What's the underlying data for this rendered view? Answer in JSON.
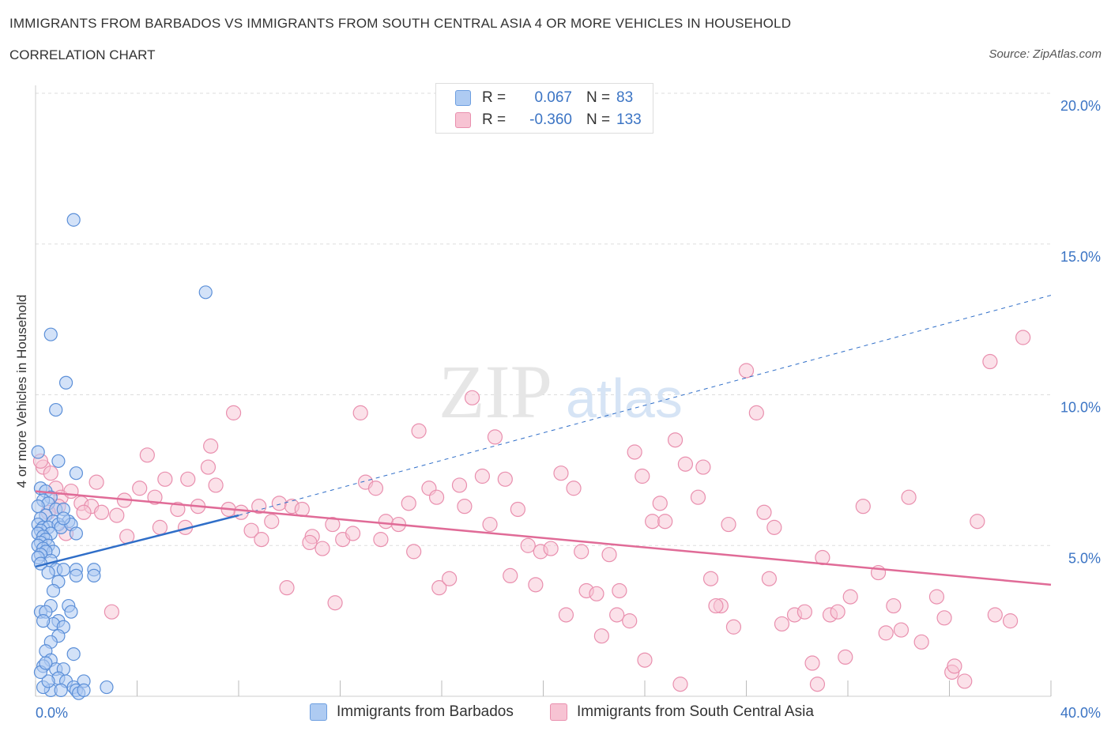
{
  "title": "IMMIGRANTS FROM BARBADOS VS IMMIGRANTS FROM SOUTH CENTRAL ASIA 4 OR MORE VEHICLES IN HOUSEHOLD",
  "subtitle": "CORRELATION CHART",
  "source": "Source: ZipAtlas.com",
  "watermark": {
    "part1": "ZIP",
    "part2": "atlas"
  },
  "legend": {
    "rows": [
      {
        "r_label": "R =",
        "r_value": "0.067",
        "n_label": "N =",
        "n_value": "83",
        "fill": "#aecbf2",
        "stroke": "#6e9fe0"
      },
      {
        "r_label": "R =",
        "r_value": "-0.360",
        "n_label": "N =",
        "n_value": "133",
        "fill": "#f7c3d3",
        "stroke": "#e98fae"
      }
    ]
  },
  "bottom_legend": [
    "Immigrants from Barbados",
    "Immigrants from South Central Asia"
  ],
  "colors": {
    "blue_fill": "#aecbf2",
    "blue_stroke": "#5b8fd8",
    "blue_line": "#2f6ec8",
    "pink_fill": "#f7c3d3",
    "pink_stroke": "#e98fae",
    "pink_line": "#e06b97",
    "tick_text": "#3b74c4",
    "grid": "#dddddd"
  },
  "chart_data": {
    "type": "scatter",
    "title": "IMMIGRANTS FROM BARBADOS VS IMMIGRANTS FROM SOUTH CENTRAL ASIA 4 OR MORE VEHICLES IN HOUSEHOLD",
    "subtitle": "CORRELATION CHART",
    "xlabel": "",
    "ylabel": "4 or more Vehicles in Household",
    "xlim": [
      0,
      40
    ],
    "ylim": [
      0,
      20
    ],
    "x_tick_labels": [
      "0.0%",
      "40.0%"
    ],
    "y_ticks": [
      5,
      10,
      15,
      20
    ],
    "y_tick_labels": [
      "5.0%",
      "10.0%",
      "15.0%",
      "20.0%"
    ],
    "grid": true,
    "legend_position": "top-center",
    "series": [
      {
        "name": "Immigrants from Barbados",
        "R": 0.067,
        "N": 83,
        "trend": {
          "x": [
            0,
            8
          ],
          "y": [
            4.3,
            6.0
          ],
          "extended_dashed_to": [
            40,
            13.3
          ]
        },
        "points": [
          [
            1.5,
            15.8
          ],
          [
            6.7,
            13.4
          ],
          [
            0.6,
            12.0
          ],
          [
            1.2,
            10.4
          ],
          [
            0.8,
            9.5
          ],
          [
            0.1,
            8.1
          ],
          [
            0.9,
            7.8
          ],
          [
            1.6,
            7.4
          ],
          [
            0.2,
            6.9
          ],
          [
            0.4,
            6.8
          ],
          [
            0.6,
            6.6
          ],
          [
            0.3,
            6.5
          ],
          [
            0.5,
            6.4
          ],
          [
            0.1,
            6.3
          ],
          [
            0.8,
            6.2
          ],
          [
            1.1,
            6.2
          ],
          [
            0.4,
            6.0
          ],
          [
            0.2,
            5.9
          ],
          [
            0.7,
            5.8
          ],
          [
            1.3,
            5.8
          ],
          [
            0.1,
            5.7
          ],
          [
            0.3,
            5.6
          ],
          [
            0.5,
            5.6
          ],
          [
            0.9,
            5.7
          ],
          [
            1.0,
            5.6
          ],
          [
            1.4,
            5.7
          ],
          [
            0.2,
            5.5
          ],
          [
            0.6,
            5.4
          ],
          [
            0.1,
            5.4
          ],
          [
            0.3,
            5.3
          ],
          [
            1.6,
            5.4
          ],
          [
            0.4,
            5.2
          ],
          [
            0.2,
            5.1
          ],
          [
            0.1,
            5.0
          ],
          [
            0.5,
            5.0
          ],
          [
            0.3,
            4.9
          ],
          [
            0.7,
            4.8
          ],
          [
            0.4,
            4.8
          ],
          [
            0.2,
            4.7
          ],
          [
            0.1,
            4.6
          ],
          [
            0.6,
            4.5
          ],
          [
            0.2,
            4.4
          ],
          [
            0.8,
            4.2
          ],
          [
            1.1,
            4.2
          ],
          [
            1.6,
            4.2
          ],
          [
            2.3,
            4.2
          ],
          [
            0.5,
            4.1
          ],
          [
            1.6,
            4.0
          ],
          [
            2.3,
            4.0
          ],
          [
            0.9,
            3.8
          ],
          [
            0.7,
            3.5
          ],
          [
            0.6,
            3.0
          ],
          [
            1.3,
            3.0
          ],
          [
            0.2,
            2.8
          ],
          [
            0.4,
            2.8
          ],
          [
            1.4,
            2.8
          ],
          [
            0.9,
            2.5
          ],
          [
            0.7,
            2.4
          ],
          [
            1.1,
            2.3
          ],
          [
            0.9,
            2.0
          ],
          [
            0.6,
            1.8
          ],
          [
            0.4,
            1.5
          ],
          [
            1.5,
            1.4
          ],
          [
            0.6,
            1.2
          ],
          [
            0.3,
            1.0
          ],
          [
            0.8,
            0.9
          ],
          [
            1.1,
            0.9
          ],
          [
            0.9,
            0.6
          ],
          [
            1.2,
            0.5
          ],
          [
            1.9,
            0.5
          ],
          [
            2.8,
            0.3
          ],
          [
            1.5,
            0.3
          ],
          [
            0.6,
            0.2
          ],
          [
            1.0,
            0.2
          ],
          [
            1.6,
            0.2
          ],
          [
            1.7,
            0.1
          ],
          [
            1.9,
            0.2
          ],
          [
            0.3,
            0.3
          ],
          [
            0.5,
            0.5
          ],
          [
            0.2,
            0.8
          ],
          [
            0.4,
            1.1
          ],
          [
            0.3,
            2.5
          ],
          [
            1.1,
            5.9
          ]
        ]
      },
      {
        "name": "Immigrants from South Central Asia",
        "R": -0.36,
        "N": 133,
        "trend": {
          "x": [
            0,
            40
          ],
          "y": [
            6.8,
            3.7
          ]
        },
        "points": [
          [
            0.3,
            7.6
          ],
          [
            0.6,
            7.4
          ],
          [
            0.8,
            6.9
          ],
          [
            1.0,
            6.6
          ],
          [
            1.4,
            6.8
          ],
          [
            0.9,
            6.3
          ],
          [
            1.8,
            6.4
          ],
          [
            2.2,
            6.3
          ],
          [
            2.6,
            6.1
          ],
          [
            3.2,
            6.0
          ],
          [
            3.5,
            6.5
          ],
          [
            4.1,
            6.9
          ],
          [
            4.7,
            6.6
          ],
          [
            5.1,
            7.2
          ],
          [
            5.6,
            6.2
          ],
          [
            6.0,
            7.2
          ],
          [
            6.4,
            6.3
          ],
          [
            6.8,
            7.6
          ],
          [
            7.1,
            7.0
          ],
          [
            7.6,
            6.2
          ],
          [
            8.1,
            6.1
          ],
          [
            8.5,
            5.5
          ],
          [
            8.9,
            5.2
          ],
          [
            9.3,
            5.8
          ],
          [
            9.6,
            6.4
          ],
          [
            10.1,
            6.3
          ],
          [
            10.5,
            6.2
          ],
          [
            10.9,
            5.3
          ],
          [
            11.3,
            4.9
          ],
          [
            11.7,
            5.7
          ],
          [
            12.1,
            5.2
          ],
          [
            12.5,
            5.4
          ],
          [
            13.0,
            7.1
          ],
          [
            13.4,
            6.9
          ],
          [
            13.8,
            5.8
          ],
          [
            14.3,
            5.7
          ],
          [
            14.7,
            6.4
          ],
          [
            15.1,
            8.8
          ],
          [
            15.5,
            6.9
          ],
          [
            15.9,
            3.6
          ],
          [
            16.3,
            3.9
          ],
          [
            16.7,
            7.0
          ],
          [
            17.2,
            9.9
          ],
          [
            17.6,
            7.3
          ],
          [
            18.1,
            8.6
          ],
          [
            18.5,
            7.2
          ],
          [
            19.0,
            6.2
          ],
          [
            19.4,
            5.0
          ],
          [
            19.9,
            4.8
          ],
          [
            20.3,
            4.9
          ],
          [
            20.7,
            7.4
          ],
          [
            21.2,
            6.9
          ],
          [
            21.7,
            3.5
          ],
          [
            22.1,
            3.4
          ],
          [
            22.6,
            4.7
          ],
          [
            23.0,
            3.5
          ],
          [
            23.4,
            2.5
          ],
          [
            23.9,
            7.3
          ],
          [
            24.3,
            5.8
          ],
          [
            24.8,
            5.8
          ],
          [
            25.2,
            8.5
          ],
          [
            25.6,
            7.7
          ],
          [
            26.1,
            6.6
          ],
          [
            26.6,
            3.9
          ],
          [
            27.0,
            3.0
          ],
          [
            27.5,
            2.3
          ],
          [
            28.0,
            10.8
          ],
          [
            28.4,
            9.4
          ],
          [
            28.9,
            3.9
          ],
          [
            29.4,
            2.4
          ],
          [
            29.9,
            2.7
          ],
          [
            30.3,
            2.8
          ],
          [
            30.8,
            0.4
          ],
          [
            31.3,
            2.7
          ],
          [
            31.9,
            1.3
          ],
          [
            32.6,
            6.3
          ],
          [
            33.2,
            4.1
          ],
          [
            33.8,
            3.0
          ],
          [
            34.4,
            6.6
          ],
          [
            34.9,
            1.8
          ],
          [
            35.5,
            3.3
          ],
          [
            36.1,
            0.8
          ],
          [
            36.6,
            0.5
          ],
          [
            37.1,
            5.8
          ],
          [
            37.8,
            2.7
          ],
          [
            38.4,
            2.5
          ],
          [
            38.9,
            11.9
          ],
          [
            37.6,
            11.1
          ],
          [
            36.2,
            1.0
          ],
          [
            35.8,
            2.6
          ],
          [
            26.8,
            3.0
          ],
          [
            25.4,
            0.4
          ],
          [
            24.0,
            1.2
          ],
          [
            22.3,
            2.0
          ],
          [
            20.9,
            2.7
          ],
          [
            19.7,
            3.7
          ],
          [
            18.7,
            4.0
          ],
          [
            17.9,
            5.7
          ],
          [
            16.9,
            6.3
          ],
          [
            15.8,
            6.6
          ],
          [
            14.9,
            4.8
          ],
          [
            13.6,
            5.2
          ],
          [
            12.8,
            9.4
          ],
          [
            11.8,
            3.1
          ],
          [
            10.8,
            5.1
          ],
          [
            9.9,
            3.6
          ],
          [
            8.8,
            6.3
          ],
          [
            7.8,
            9.4
          ],
          [
            6.9,
            8.3
          ],
          [
            5.9,
            5.6
          ],
          [
            4.9,
            5.6
          ],
          [
            4.4,
            8.0
          ],
          [
            3.6,
            5.3
          ],
          [
            3.0,
            2.8
          ],
          [
            2.4,
            7.1
          ],
          [
            1.9,
            6.1
          ],
          [
            1.2,
            5.4
          ],
          [
            0.5,
            6.1
          ],
          [
            0.2,
            7.8
          ],
          [
            21.5,
            4.8
          ],
          [
            23.6,
            8.1
          ],
          [
            24.6,
            6.4
          ],
          [
            26.3,
            7.6
          ],
          [
            28.7,
            6.1
          ],
          [
            27.3,
            5.7
          ],
          [
            22.9,
            2.7
          ],
          [
            29.1,
            5.6
          ],
          [
            33.5,
            2.1
          ],
          [
            31.0,
            4.6
          ],
          [
            32.1,
            3.3
          ],
          [
            34.1,
            2.2
          ],
          [
            30.6,
            1.1
          ],
          [
            31.6,
            2.8
          ]
        ]
      }
    ]
  }
}
